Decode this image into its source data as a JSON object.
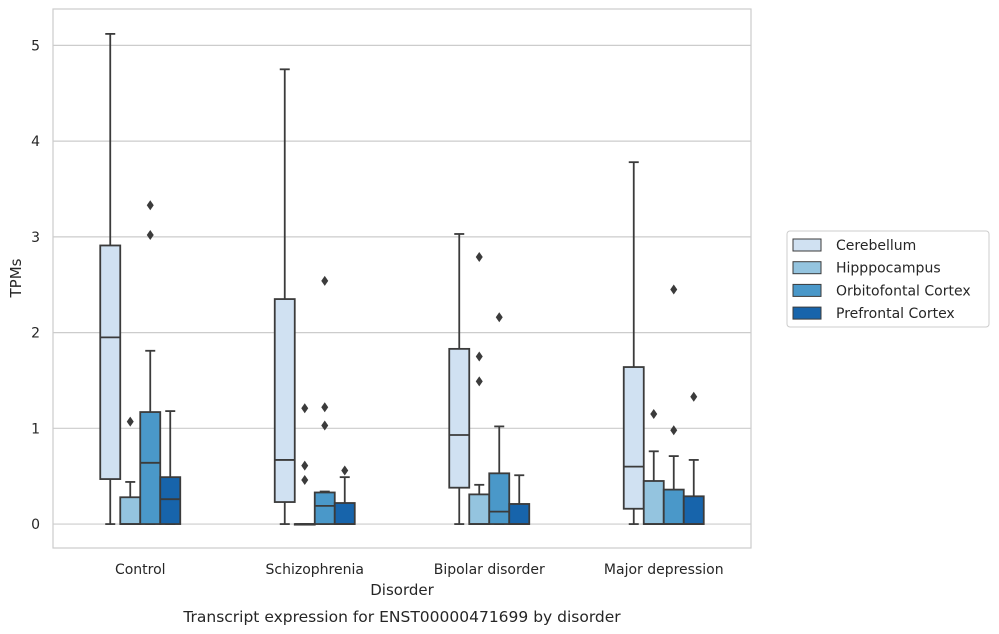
{
  "chart_data": {
    "type": "box",
    "xlabel": "Disorder",
    "ylabel": "TPMs",
    "caption": "Transcript expression for ENST00000471699 by disorder",
    "ylim": [
      -0.25,
      5.38
    ],
    "yticks": [
      0,
      1,
      2,
      3,
      4,
      5
    ],
    "grid": "horizontal",
    "legend_position": "right",
    "categories": [
      "Control",
      "Schizophrenia",
      "Bipolar disorder",
      "Major depression"
    ],
    "series": [
      {
        "name": "Cerebellum",
        "color": "#d0e1f2",
        "boxes": [
          {
            "whislo": 0,
            "q1": 0.47,
            "med": 1.95,
            "q3": 2.91,
            "whishi": 5.12,
            "fliers": []
          },
          {
            "whislo": 0,
            "q1": 0.23,
            "med": 0.67,
            "q3": 2.35,
            "whishi": 4.75,
            "fliers": []
          },
          {
            "whislo": 0,
            "q1": 0.38,
            "med": 0.93,
            "q3": 1.83,
            "whishi": 3.03,
            "fliers": []
          },
          {
            "whislo": 0,
            "q1": 0.16,
            "med": 0.6,
            "q3": 1.64,
            "whishi": 3.78,
            "fliers": []
          }
        ]
      },
      {
        "name": "Hipppocampus",
        "color": "#94c4df",
        "boxes": [
          {
            "whislo": 0,
            "q1": 0,
            "med": 0,
            "q3": 0.28,
            "whishi": 0.44,
            "fliers": [
              1.07
            ]
          },
          {
            "whislo": 0,
            "q1": 0,
            "med": 0,
            "q3": 0,
            "whishi": 0,
            "fliers": [
              1.21,
              0.61,
              0.46
            ]
          },
          {
            "whislo": 0,
            "q1": 0,
            "med": 0,
            "q3": 0.31,
            "whishi": 0.41,
            "fliers": [
              2.79,
              1.75,
              1.49
            ]
          },
          {
            "whislo": 0,
            "q1": 0,
            "med": 0,
            "q3": 0.45,
            "whishi": 0.76,
            "fliers": [
              1.15
            ]
          }
        ]
      },
      {
        "name": "Orbitofontal Cortex",
        "color": "#4a98c9",
        "boxes": [
          {
            "whislo": 0,
            "q1": 0,
            "med": 0.64,
            "q3": 1.17,
            "whishi": 1.81,
            "fliers": [
              3.33,
              3.02
            ]
          },
          {
            "whislo": 0,
            "q1": 0,
            "med": 0.19,
            "q3": 0.33,
            "whishi": 0.34,
            "fliers": [
              2.54,
              1.22,
              1.03
            ]
          },
          {
            "whislo": 0,
            "q1": 0,
            "med": 0.13,
            "q3": 0.53,
            "whishi": 1.02,
            "fliers": [
              2.16
            ]
          },
          {
            "whislo": 0,
            "q1": 0,
            "med": 0,
            "q3": 0.36,
            "whishi": 0.71,
            "fliers": [
              2.45,
              0.98
            ]
          }
        ]
      },
      {
        "name": "Prefrontal Cortex",
        "color": "#1764ab",
        "boxes": [
          {
            "whislo": 0,
            "q1": 0,
            "med": 0.26,
            "q3": 0.49,
            "whishi": 1.18,
            "fliers": []
          },
          {
            "whislo": 0,
            "q1": 0,
            "med": 0,
            "q3": 0.22,
            "whishi": 0.49,
            "fliers": [
              0.56
            ]
          },
          {
            "whislo": 0,
            "q1": 0,
            "med": 0,
            "q3": 0.21,
            "whishi": 0.51,
            "fliers": []
          },
          {
            "whislo": 0,
            "q1": 0,
            "med": 0,
            "q3": 0.29,
            "whishi": 0.67,
            "fliers": [
              1.33
            ]
          }
        ]
      }
    ]
  }
}
